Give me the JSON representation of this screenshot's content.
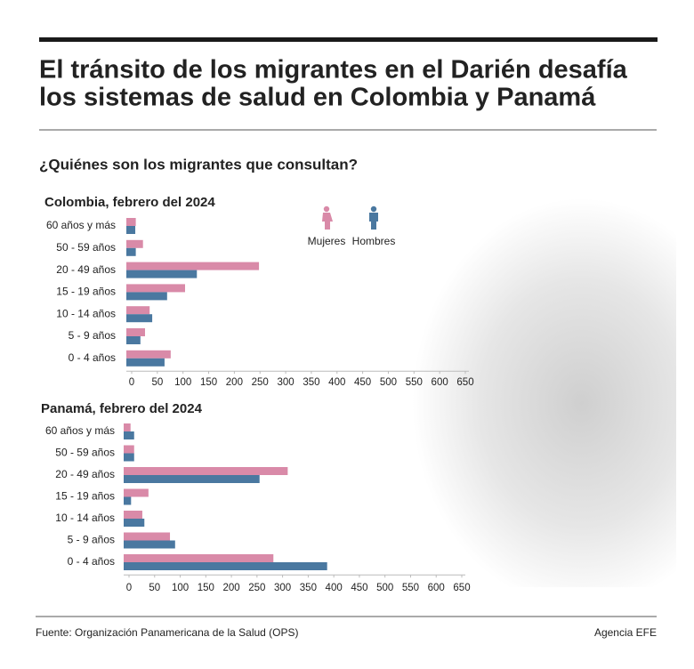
{
  "title": [
    "El tránsito de los migrantes en el Darién desafía",
    "los sistemas de salud en Colombia y Panamá"
  ],
  "subtitle": "¿Quiénes son los migrantes que consultan?",
  "source": "Fuente: Organización Panamericana de la Salud (OPS)",
  "credit": "Agencia EFE",
  "chart_data": [
    {
      "type": "bar",
      "orientation": "horizontal",
      "title": "Colombia, febrero del 2024",
      "categories": [
        "60 años y más",
        "50 - 59 años",
        "20 - 49 años",
        "15 - 19 años",
        "10 - 14 años",
        "5 - 9 años",
        "0 - 4 años"
      ],
      "series": [
        {
          "name": "Mujeres",
          "color": "#d98aa8",
          "values": [
            8,
            22,
            248,
            104,
            35,
            26,
            76
          ]
        },
        {
          "name": "Hombres",
          "color": "#4a78a0",
          "values": [
            7,
            8,
            127,
            69,
            40,
            17,
            64
          ]
        }
      ],
      "xlim": [
        0,
        650
      ],
      "xticks": [
        0,
        50,
        100,
        150,
        200,
        250,
        300,
        350,
        400,
        450,
        500,
        550,
        600,
        650
      ]
    },
    {
      "type": "bar",
      "orientation": "horizontal",
      "title": "Panamá, febrero del 2024",
      "categories": [
        "60 años y más",
        "50 - 59 años",
        "20 - 49 años",
        "15 - 19 años",
        "10 - 14 años",
        "5 - 9 años",
        "0 - 4 años"
      ],
      "series": [
        {
          "color": "#d98aa8",
          "values": [
            3,
            10,
            310,
            38,
            26,
            80,
            282
          ]
        },
        {
          "color": "#4a78a0",
          "values": [
            10,
            10,
            255,
            4,
            30,
            90,
            387
          ]
        }
      ],
      "xlim": [
        0,
        650
      ],
      "xticks": [
        0,
        50,
        100,
        150,
        200,
        250,
        300,
        350,
        400,
        450,
        500,
        550,
        600,
        650
      ]
    }
  ]
}
